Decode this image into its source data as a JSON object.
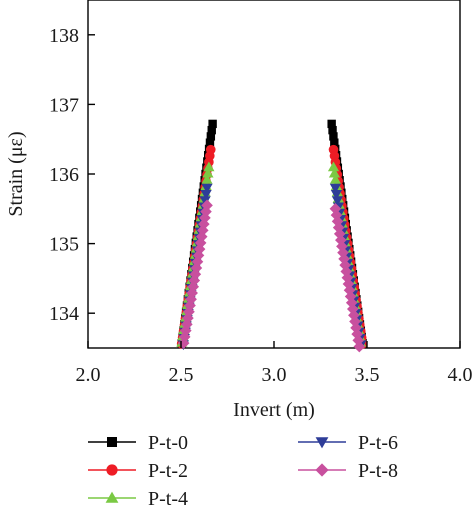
{
  "chart_data": {
    "type": "scatter",
    "xlabel": "Invert (m)",
    "ylabel": "Strain (με)",
    "xlim": [
      2.0,
      4.0
    ],
    "ylim": [
      133.5,
      138.5
    ],
    "xticks": [
      "2.0",
      "2.5",
      "3.0",
      "3.5",
      "4.0"
    ],
    "yticks": [
      "134",
      "135",
      "136",
      "137",
      "138"
    ],
    "grid": false,
    "legend_position": "bottom",
    "series": [
      {
        "name": "P-t-0",
        "color": "#000000",
        "marker": "square",
        "left": {
          "x_bottom": 2.5,
          "x_top": 2.67,
          "y_top": 136.72
        },
        "right": {
          "x_bottom": 3.48,
          "x_top": 3.31,
          "y_top": 136.72
        }
      },
      {
        "name": "P-t-2",
        "color": "#ee1c25",
        "marker": "circle",
        "left": {
          "x_bottom": 2.5,
          "x_top": 2.66,
          "y_top": 136.35
        },
        "right": {
          "x_bottom": 3.48,
          "x_top": 3.32,
          "y_top": 136.35
        }
      },
      {
        "name": "P-t-4",
        "color": "#7ac943",
        "marker": "triangle-up",
        "left": {
          "x_bottom": 2.5,
          "x_top": 2.65,
          "y_top": 136.1
        },
        "right": {
          "x_bottom": 3.47,
          "x_top": 3.32,
          "y_top": 136.1
        }
      },
      {
        "name": "P-t-6",
        "color": "#2e3d98",
        "marker": "triangle-down",
        "left": {
          "x_bottom": 2.51,
          "x_top": 2.64,
          "y_top": 135.8
        },
        "right": {
          "x_bottom": 3.47,
          "x_top": 3.33,
          "y_top": 135.8
        }
      },
      {
        "name": "P-t-8",
        "color": "#c8509e",
        "marker": "diamond",
        "left": {
          "x_bottom": 2.51,
          "x_top": 2.64,
          "y_top": 135.55
        },
        "right": {
          "x_bottom": 3.46,
          "x_top": 3.33,
          "y_top": 135.5
        }
      }
    ]
  }
}
